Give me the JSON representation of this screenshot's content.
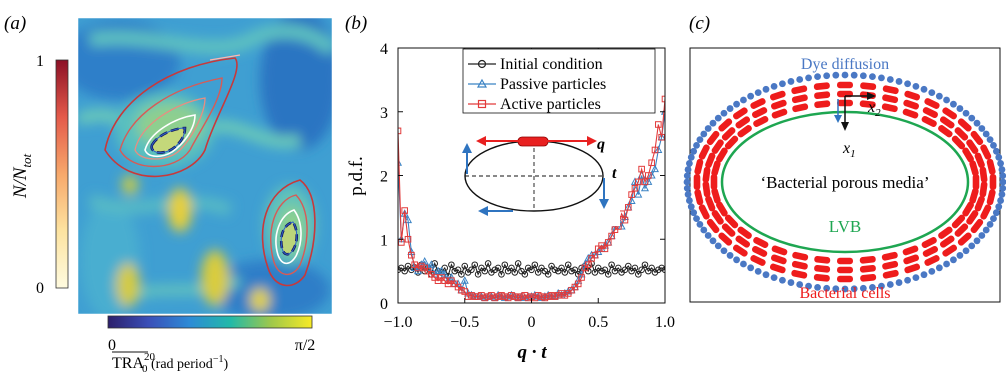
{
  "panels": {
    "a": {
      "label": "(a)",
      "colorbar_left": {
        "label_main": "N/N",
        "label_sub": "tot",
        "tick_top": "1",
        "tick_bottom": "0"
      },
      "colorbar_bottom": {
        "tick_left": "0",
        "tick_right": "π/2",
        "label_main": "TRA",
        "label_sub": "0",
        "label_sup": "20",
        "label_unit_pre": " (rad period",
        "label_unit_sup": "−1",
        "label_unit_post": ")"
      }
    },
    "b": {
      "label": "(b)",
      "inset": {
        "q_label": "q",
        "t_label": "t"
      }
    },
    "c": {
      "label": "(c)",
      "dye_label": "Dye diffusion",
      "porous_label": "‘Bacterial porous media’",
      "lvb_label": "LVB",
      "cells_label": "Bacterial cells",
      "x1_main": "x",
      "x1_sub": "1",
      "x2_main": "x",
      "x2_sub": "2"
    }
  },
  "colors": {
    "initial": "#222222",
    "passive": "#3b83c4",
    "active": "#e23b3b",
    "dye": "#4a78c4",
    "cells": "#ee1c1c",
    "lvb": "#1ea651"
  },
  "chart_data": {
    "type": "line",
    "xlabel": "q · t",
    "ylabel": "p.d.f.",
    "xlim": [
      -1,
      1
    ],
    "ylim": [
      0,
      4
    ],
    "xticks": [
      -1.0,
      -0.5,
      0,
      0.5,
      1.0
    ],
    "xtick_labels": [
      "−1.0",
      "−0.5",
      "0",
      "0.5",
      "1.0"
    ],
    "yticks": [
      0,
      1,
      2,
      3,
      4
    ],
    "ytick_labels": [
      "0",
      "1",
      "2",
      "3",
      "4"
    ],
    "legend_position": "top",
    "x": [
      -1.0,
      -0.975,
      -0.95,
      -0.925,
      -0.9,
      -0.875,
      -0.85,
      -0.825,
      -0.8,
      -0.775,
      -0.75,
      -0.725,
      -0.7,
      -0.675,
      -0.65,
      -0.625,
      -0.6,
      -0.575,
      -0.55,
      -0.525,
      -0.5,
      -0.475,
      -0.45,
      -0.425,
      -0.4,
      -0.375,
      -0.35,
      -0.325,
      -0.3,
      -0.275,
      -0.25,
      -0.225,
      -0.2,
      -0.175,
      -0.15,
      -0.125,
      -0.1,
      -0.075,
      -0.05,
      -0.025,
      0.0,
      0.025,
      0.05,
      0.075,
      0.1,
      0.125,
      0.15,
      0.175,
      0.2,
      0.225,
      0.25,
      0.275,
      0.3,
      0.325,
      0.35,
      0.375,
      0.4,
      0.425,
      0.45,
      0.475,
      0.5,
      0.525,
      0.55,
      0.575,
      0.6,
      0.625,
      0.65,
      0.675,
      0.7,
      0.725,
      0.75,
      0.775,
      0.8,
      0.825,
      0.85,
      0.875,
      0.9,
      0.925,
      0.95,
      0.975,
      1.0
    ],
    "series": [
      {
        "name": "Initial condition",
        "marker": "circle",
        "color": "#222222",
        "values": [
          0.52,
          0.55,
          0.5,
          0.58,
          0.52,
          0.56,
          0.48,
          0.6,
          0.5,
          0.55,
          0.45,
          0.62,
          0.5,
          0.48,
          0.55,
          0.42,
          0.6,
          0.5,
          0.52,
          0.45,
          0.58,
          0.48,
          0.52,
          0.6,
          0.45,
          0.55,
          0.5,
          0.62,
          0.48,
          0.52,
          0.55,
          0.45,
          0.6,
          0.5,
          0.55,
          0.48,
          0.62,
          0.5,
          0.45,
          0.55,
          0.52,
          0.6,
          0.48,
          0.55,
          0.5,
          0.45,
          0.58,
          0.52,
          0.5,
          0.55,
          0.48,
          0.6,
          0.5,
          0.52,
          0.45,
          0.55,
          0.58,
          0.5,
          0.62,
          0.48,
          0.55,
          0.5,
          0.52,
          0.45,
          0.6,
          0.5,
          0.55,
          0.48,
          0.52,
          0.58,
          0.5,
          0.55,
          0.45,
          0.52,
          0.6,
          0.5,
          0.55,
          0.48,
          0.52,
          0.55,
          0.52
        ]
      },
      {
        "name": "Passive particles",
        "marker": "triangle",
        "color": "#3b83c4",
        "values": [
          2.2,
          1.0,
          1.4,
          1.3,
          0.8,
          0.55,
          0.5,
          0.6,
          0.65,
          0.55,
          0.6,
          0.45,
          0.5,
          0.5,
          0.45,
          0.35,
          0.4,
          0.3,
          0.3,
          0.2,
          0.35,
          0.15,
          0.12,
          0.1,
          0.1,
          0.1,
          0.08,
          0.1,
          0.1,
          0.08,
          0.12,
          0.1,
          0.08,
          0.1,
          0.12,
          0.1,
          0.08,
          0.1,
          0.08,
          0.1,
          0.1,
          0.12,
          0.1,
          0.08,
          0.1,
          0.12,
          0.1,
          0.1,
          0.15,
          0.12,
          0.15,
          0.18,
          0.2,
          0.25,
          0.35,
          0.45,
          0.6,
          0.7,
          0.75,
          0.75,
          0.8,
          0.85,
          0.9,
          0.95,
          1.05,
          1.2,
          1.3,
          1.2,
          1.35,
          1.5,
          1.6,
          1.9,
          1.7,
          2.0,
          1.8,
          1.9,
          2.0,
          2.1,
          2.4,
          2.6,
          3.0
        ]
      },
      {
        "name": "Active particles",
        "marker": "square",
        "color": "#e23b3b",
        "values": [
          2.7,
          0.95,
          1.45,
          1.0,
          0.75,
          0.6,
          0.55,
          0.58,
          0.55,
          0.5,
          0.45,
          0.4,
          0.35,
          0.4,
          0.35,
          0.3,
          0.35,
          0.3,
          0.25,
          0.2,
          0.18,
          0.1,
          0.12,
          0.1,
          0.1,
          0.12,
          0.08,
          0.1,
          0.12,
          0.08,
          0.1,
          0.12,
          0.1,
          0.08,
          0.12,
          0.1,
          0.08,
          0.1,
          0.12,
          0.08,
          0.1,
          0.08,
          0.12,
          0.1,
          0.08,
          0.1,
          0.12,
          0.1,
          0.12,
          0.15,
          0.12,
          0.15,
          0.2,
          0.25,
          0.3,
          0.4,
          0.55,
          0.6,
          0.7,
          0.75,
          0.85,
          0.9,
          0.85,
          0.95,
          1.05,
          1.15,
          1.2,
          1.4,
          1.3,
          1.5,
          1.7,
          1.8,
          1.9,
          2.1,
          1.9,
          2.0,
          2.2,
          2.4,
          2.8,
          2.6,
          3.2
        ]
      }
    ]
  }
}
